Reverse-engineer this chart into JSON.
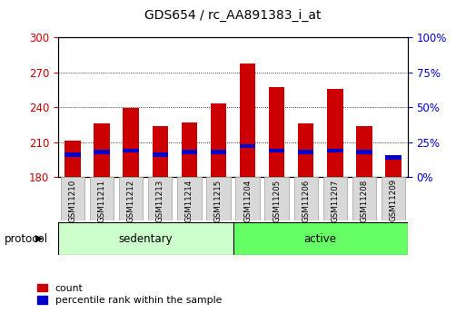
{
  "title": "GDS654 / rc_AA891383_i_at",
  "samples": [
    "GSM11210",
    "GSM11211",
    "GSM11212",
    "GSM11213",
    "GSM11214",
    "GSM11215",
    "GSM11204",
    "GSM11205",
    "GSM11206",
    "GSM11207",
    "GSM11208",
    "GSM11209"
  ],
  "count_values": [
    211,
    226,
    239,
    224,
    227,
    243,
    278,
    257,
    226,
    256,
    224,
    192
  ],
  "percentile_values": [
    16,
    18,
    19,
    16,
    18,
    18,
    22,
    19,
    18,
    19,
    18,
    14
  ],
  "base": 180,
  "ylim_left": [
    180,
    300
  ],
  "ylim_right": [
    0,
    100
  ],
  "yticks_left": [
    180,
    210,
    240,
    270,
    300
  ],
  "yticks_right": [
    0,
    25,
    50,
    75,
    100
  ],
  "groups": [
    {
      "label": "sedentary",
      "indices": [
        0,
        1,
        2,
        3,
        4,
        5
      ],
      "color": "#ccffcc"
    },
    {
      "label": "active",
      "indices": [
        6,
        7,
        8,
        9,
        10,
        11
      ],
      "color": "#66ff66"
    }
  ],
  "group_label": "protocol",
  "bar_color_red": "#cc0000",
  "bar_color_blue": "#0000cc",
  "bar_width": 0.55,
  "bg_color": "#ffffff",
  "plot_bg": "#ffffff",
  "tick_color_left": "#cc0000",
  "tick_color_right": "#0000cc",
  "title_fontsize": 10,
  "legend_items": [
    "count",
    "percentile rank within the sample"
  ],
  "legend_colors": [
    "#cc0000",
    "#0000cc"
  ],
  "xtick_box_color": "#d8d8d8",
  "xtick_box_edge": "#aaaaaa"
}
